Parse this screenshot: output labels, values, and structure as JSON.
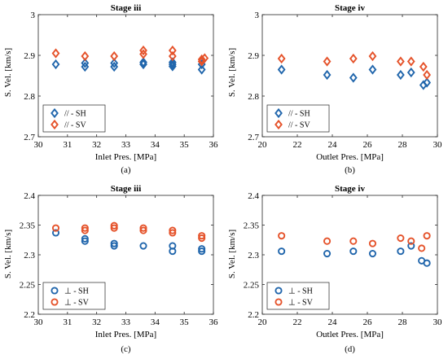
{
  "colors": {
    "sh": "#2166ac",
    "sv": "#e5532b",
    "axis": "#262626"
  },
  "chart_data": [
    {
      "type": "scatter",
      "title": "Stage iii",
      "caption": "(a)",
      "xlabel": "Inlet Pres. [MPa]",
      "ylabel": "S. Vel. [km/s]",
      "xlim": [
        30,
        36
      ],
      "ylim": [
        2.7,
        3.0
      ],
      "xticks": [
        "30",
        "31",
        "32",
        "33",
        "34",
        "35",
        "36"
      ],
      "yticks": [
        "2.7",
        "2.8",
        "2.9",
        "3"
      ],
      "marker": "diamond",
      "legend_position": "bottom-left",
      "grid": false,
      "series": [
        {
          "name": "// - SH",
          "color_key": "sh",
          "points": [
            [
              30.6,
              2.878
            ],
            [
              31.6,
              2.872
            ],
            [
              31.6,
              2.881
            ],
            [
              32.6,
              2.872
            ],
            [
              32.6,
              2.881
            ],
            [
              33.6,
              2.878
            ],
            [
              33.6,
              2.883
            ],
            [
              34.6,
              2.873
            ],
            [
              34.6,
              2.878
            ],
            [
              34.6,
              2.883
            ],
            [
              35.6,
              2.865
            ],
            [
              35.6,
              2.878
            ]
          ]
        },
        {
          "name": "// - SV",
          "color_key": "sv",
          "points": [
            [
              30.6,
              2.905
            ],
            [
              31.6,
              2.898
            ],
            [
              32.6,
              2.898
            ],
            [
              33.6,
              2.903
            ],
            [
              33.6,
              2.912
            ],
            [
              34.6,
              2.898
            ],
            [
              34.6,
              2.912
            ],
            [
              35.6,
              2.885
            ],
            [
              35.6,
              2.89
            ],
            [
              35.7,
              2.893
            ]
          ]
        }
      ]
    },
    {
      "type": "scatter",
      "title": "Stage iv",
      "caption": "(b)",
      "xlabel": "Outlet Pres. [MPa]",
      "ylabel": "S. Vel. [km/s]",
      "xlim": [
        20,
        30
      ],
      "ylim": [
        2.7,
        3.0
      ],
      "xticks": [
        "20",
        "22",
        "24",
        "26",
        "28",
        "30"
      ],
      "yticks": [
        "2.7",
        "2.8",
        "2.9",
        "3"
      ],
      "marker": "diamond",
      "legend_position": "bottom-left",
      "grid": false,
      "series": [
        {
          "name": "// - SH",
          "color_key": "sh",
          "points": [
            [
              21.1,
              2.865
            ],
            [
              23.7,
              2.852
            ],
            [
              25.2,
              2.845
            ],
            [
              26.3,
              2.865
            ],
            [
              27.9,
              2.852
            ],
            [
              28.5,
              2.858
            ],
            [
              29.2,
              2.827
            ],
            [
              29.4,
              2.833
            ]
          ]
        },
        {
          "name": "// - SV",
          "color_key": "sv",
          "points": [
            [
              21.1,
              2.892
            ],
            [
              23.7,
              2.885
            ],
            [
              25.2,
              2.892
            ],
            [
              26.3,
              2.898
            ],
            [
              27.9,
              2.885
            ],
            [
              28.5,
              2.885
            ],
            [
              29.2,
              2.872
            ],
            [
              29.4,
              2.852
            ]
          ]
        }
      ]
    },
    {
      "type": "scatter",
      "title": "Stage iii",
      "caption": "(c)",
      "xlabel": "Inlet Pres. [MPa]",
      "ylabel": "S. Vel. [km/s]",
      "xlim": [
        30,
        36
      ],
      "ylim": [
        2.2,
        2.4
      ],
      "xticks": [
        "30",
        "31",
        "32",
        "33",
        "34",
        "35",
        "36"
      ],
      "yticks": [
        "2.2",
        "2.25",
        "2.3",
        "2.35",
        "2.4"
      ],
      "marker": "circle",
      "legend_position": "bottom-left",
      "grid": false,
      "series": [
        {
          "name": "⊥ - SH",
          "color_key": "sh",
          "points": [
            [
              30.6,
              2.337
            ],
            [
              31.6,
              2.323
            ],
            [
              31.6,
              2.327
            ],
            [
              32.6,
              2.315
            ],
            [
              32.6,
              2.319
            ],
            [
              33.6,
              2.315
            ],
            [
              34.6,
              2.306
            ],
            [
              34.6,
              2.315
            ],
            [
              35.6,
              2.306
            ],
            [
              35.6,
              2.31
            ]
          ]
        },
        {
          "name": "⊥ - SV",
          "color_key": "sv",
          "points": [
            [
              30.6,
              2.345
            ],
            [
              31.6,
              2.341
            ],
            [
              31.6,
              2.345
            ],
            [
              32.6,
              2.345
            ],
            [
              32.6,
              2.349
            ],
            [
              33.6,
              2.341
            ],
            [
              33.6,
              2.345
            ],
            [
              34.6,
              2.337
            ],
            [
              34.6,
              2.341
            ],
            [
              35.6,
              2.328
            ],
            [
              35.6,
              2.332
            ]
          ]
        }
      ]
    },
    {
      "type": "scatter",
      "title": "Stage iv",
      "caption": "(d)",
      "xlabel": "Outlet Pres. [MPa]",
      "ylabel": "S. Vel. [km/s]",
      "xlim": [
        20,
        30
      ],
      "ylim": [
        2.2,
        2.4
      ],
      "xticks": [
        "20",
        "22",
        "24",
        "26",
        "28",
        "30"
      ],
      "yticks": [
        "2.2",
        "2.25",
        "2.3",
        "2.35",
        "2.4"
      ],
      "marker": "circle",
      "legend_position": "bottom-left",
      "grid": false,
      "series": [
        {
          "name": "⊥ - SH",
          "color_key": "sh",
          "points": [
            [
              21.1,
              2.306
            ],
            [
              23.7,
              2.302
            ],
            [
              25.2,
              2.306
            ],
            [
              26.3,
              2.302
            ],
            [
              27.9,
              2.306
            ],
            [
              28.5,
              2.315
            ],
            [
              29.1,
              2.29
            ],
            [
              29.4,
              2.286
            ]
          ]
        },
        {
          "name": "⊥ - SV",
          "color_key": "sv",
          "points": [
            [
              21.1,
              2.332
            ],
            [
              23.7,
              2.323
            ],
            [
              25.2,
              2.323
            ],
            [
              26.3,
              2.319
            ],
            [
              27.9,
              2.328
            ],
            [
              28.5,
              2.323
            ],
            [
              29.1,
              2.311
            ],
            [
              29.4,
              2.332
            ]
          ]
        }
      ]
    }
  ]
}
